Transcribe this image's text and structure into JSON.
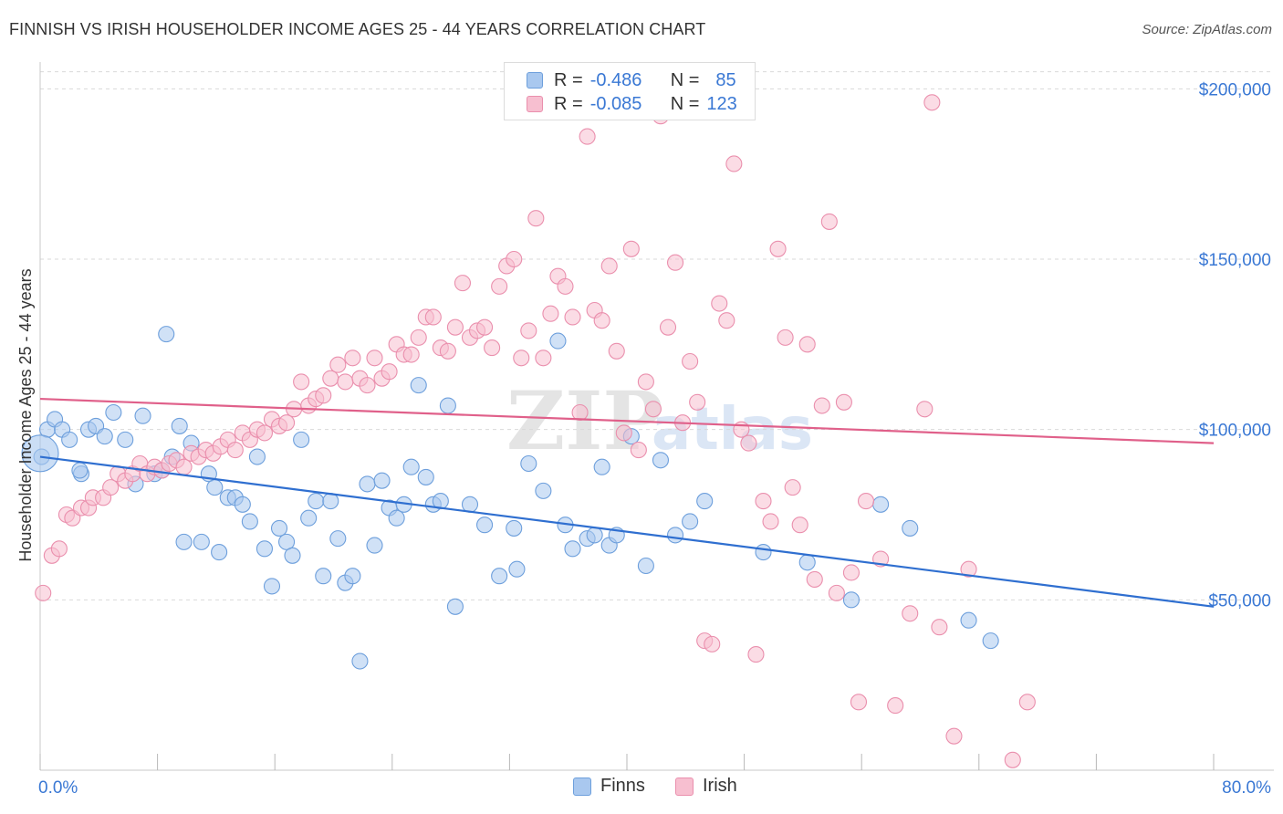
{
  "title": "FINNISH VS IRISH HOUSEHOLDER INCOME AGES 25 - 44 YEARS CORRELATION CHART",
  "source": "Source: ZipAtlas.com",
  "watermark": {
    "zip": "ZIP",
    "atlas": "atlas"
  },
  "legend_top": {
    "rows": [
      {
        "r_label": "R =",
        "r_value": "-0.486",
        "n_label": "N =",
        "n_value": "85"
      },
      {
        "r_label": "R =",
        "r_value": "-0.085",
        "n_label": "N =",
        "n_value": "123"
      }
    ]
  },
  "legend_bottom": {
    "finns": "Finns",
    "irish": "Irish"
  },
  "colors": {
    "finns_fill": "#a9c8ef",
    "finns_stroke": "#6d9fdc",
    "finns_line": "#2f6fd0",
    "irish_fill": "#f7bfd0",
    "irish_stroke": "#ea8fad",
    "irish_line": "#e0608a",
    "axis_text": "#3a78d4",
    "grid": "#d9d9d9"
  },
  "chart_data": {
    "type": "scatter",
    "title": "FINNISH VS IRISH HOUSEHOLDER INCOME AGES 25 - 44 YEARS CORRELATION CHART",
    "xlabel": "",
    "ylabel": "Householder Income Ages 25 - 44 years",
    "xlim": [
      0,
      80
    ],
    "ylim": [
      0,
      210000
    ],
    "x_tick_labels": [
      "0.0%",
      "80.0%"
    ],
    "y_ticks": [
      50000,
      100000,
      150000,
      200000
    ],
    "y_tick_labels": [
      "$50,000",
      "$100,000",
      "$150,000",
      "$200,000"
    ],
    "grid": true,
    "legend_position": "top-center",
    "series": [
      {
        "name": "Finns",
        "r": -0.486,
        "n": 85,
        "trend": {
          "x": [
            0,
            80
          ],
          "y": [
            92000,
            48000
          ]
        },
        "points": [
          [
            0.5,
            100000
          ],
          [
            1.0,
            103000
          ],
          [
            1.5,
            100000
          ],
          [
            2.0,
            97000
          ],
          [
            2.8,
            87000
          ],
          [
            3.3,
            100000
          ],
          [
            3.8,
            101000
          ],
          [
            4.4,
            98000
          ],
          [
            5.0,
            105000
          ],
          [
            5.8,
            97000
          ],
          [
            6.5,
            84000
          ],
          [
            7.0,
            104000
          ],
          [
            7.8,
            87000
          ],
          [
            8.3,
            88000
          ],
          [
            8.6,
            128000
          ],
          [
            9.0,
            92000
          ],
          [
            9.5,
            101000
          ],
          [
            9.8,
            67000
          ],
          [
            10.3,
            96000
          ],
          [
            11.0,
            67000
          ],
          [
            11.5,
            87000
          ],
          [
            11.9,
            83000
          ],
          [
            12.2,
            64000
          ],
          [
            12.8,
            80000
          ],
          [
            13.3,
            80000
          ],
          [
            13.8,
            78000
          ],
          [
            14.3,
            73000
          ],
          [
            14.8,
            92000
          ],
          [
            15.3,
            65000
          ],
          [
            15.8,
            54000
          ],
          [
            16.3,
            71000
          ],
          [
            16.8,
            67000
          ],
          [
            17.2,
            63000
          ],
          [
            17.8,
            97000
          ],
          [
            18.3,
            74000
          ],
          [
            18.8,
            79000
          ],
          [
            19.3,
            57000
          ],
          [
            19.8,
            79000
          ],
          [
            20.3,
            68000
          ],
          [
            20.8,
            55000
          ],
          [
            21.3,
            57000
          ],
          [
            21.8,
            32000
          ],
          [
            22.3,
            84000
          ],
          [
            22.8,
            66000
          ],
          [
            23.3,
            85000
          ],
          [
            23.8,
            77000
          ],
          [
            24.3,
            74000
          ],
          [
            24.8,
            78000
          ],
          [
            25.3,
            89000
          ],
          [
            25.8,
            113000
          ],
          [
            26.3,
            86000
          ],
          [
            26.8,
            78000
          ],
          [
            27.3,
            79000
          ],
          [
            27.8,
            107000
          ],
          [
            28.3,
            48000
          ],
          [
            29.3,
            78000
          ],
          [
            30.3,
            72000
          ],
          [
            31.3,
            57000
          ],
          [
            32.3,
            71000
          ],
          [
            32.5,
            59000
          ],
          [
            33.3,
            90000
          ],
          [
            34.3,
            82000
          ],
          [
            35.3,
            126000
          ],
          [
            35.8,
            72000
          ],
          [
            36.3,
            65000
          ],
          [
            37.3,
            68000
          ],
          [
            37.8,
            69000
          ],
          [
            38.3,
            89000
          ],
          [
            38.8,
            66000
          ],
          [
            39.3,
            69000
          ],
          [
            40.3,
            98000
          ],
          [
            41.3,
            60000
          ],
          [
            42.3,
            91000
          ],
          [
            43.3,
            69000
          ],
          [
            44.3,
            73000
          ],
          [
            45.3,
            79000
          ],
          [
            49.3,
            64000
          ],
          [
            52.3,
            61000
          ],
          [
            55.3,
            50000
          ],
          [
            57.3,
            78000
          ],
          [
            59.3,
            71000
          ],
          [
            63.3,
            44000
          ],
          [
            64.8,
            38000
          ],
          [
            0.1,
            92000
          ],
          [
            2.7,
            88000
          ]
        ]
      },
      {
        "name": "Irish",
        "r": -0.085,
        "n": 123,
        "trend": {
          "x": [
            0,
            80
          ],
          "y": [
            109000,
            96000
          ]
        },
        "points": [
          [
            0.2,
            52000
          ],
          [
            0.8,
            63000
          ],
          [
            1.3,
            65000
          ],
          [
            1.8,
            75000
          ],
          [
            2.2,
            74000
          ],
          [
            2.8,
            77000
          ],
          [
            3.3,
            77000
          ],
          [
            3.6,
            80000
          ],
          [
            4.3,
            80000
          ],
          [
            4.8,
            83000
          ],
          [
            5.3,
            87000
          ],
          [
            5.8,
            85000
          ],
          [
            6.3,
            87000
          ],
          [
            6.8,
            90000
          ],
          [
            7.3,
            87000
          ],
          [
            7.8,
            89000
          ],
          [
            8.3,
            88000
          ],
          [
            8.8,
            90000
          ],
          [
            9.3,
            91000
          ],
          [
            9.8,
            89000
          ],
          [
            10.3,
            93000
          ],
          [
            10.8,
            92000
          ],
          [
            11.3,
            94000
          ],
          [
            11.8,
            93000
          ],
          [
            12.3,
            95000
          ],
          [
            12.8,
            97000
          ],
          [
            13.3,
            94000
          ],
          [
            13.8,
            99000
          ],
          [
            14.3,
            97000
          ],
          [
            14.8,
            100000
          ],
          [
            15.3,
            99000
          ],
          [
            15.8,
            103000
          ],
          [
            16.3,
            101000
          ],
          [
            16.8,
            102000
          ],
          [
            17.3,
            106000
          ],
          [
            17.8,
            114000
          ],
          [
            18.3,
            107000
          ],
          [
            18.8,
            109000
          ],
          [
            19.3,
            110000
          ],
          [
            19.8,
            115000
          ],
          [
            20.3,
            119000
          ],
          [
            20.8,
            114000
          ],
          [
            21.3,
            121000
          ],
          [
            21.8,
            115000
          ],
          [
            22.3,
            113000
          ],
          [
            22.8,
            121000
          ],
          [
            23.3,
            115000
          ],
          [
            23.8,
            117000
          ],
          [
            24.3,
            125000
          ],
          [
            24.8,
            122000
          ],
          [
            25.3,
            122000
          ],
          [
            25.8,
            127000
          ],
          [
            26.3,
            133000
          ],
          [
            26.8,
            133000
          ],
          [
            27.3,
            124000
          ],
          [
            27.8,
            123000
          ],
          [
            28.3,
            130000
          ],
          [
            28.8,
            143000
          ],
          [
            29.3,
            127000
          ],
          [
            29.8,
            129000
          ],
          [
            30.3,
            130000
          ],
          [
            30.8,
            124000
          ],
          [
            31.3,
            142000
          ],
          [
            31.8,
            148000
          ],
          [
            32.3,
            150000
          ],
          [
            32.8,
            121000
          ],
          [
            33.3,
            129000
          ],
          [
            33.8,
            162000
          ],
          [
            34.3,
            121000
          ],
          [
            34.8,
            134000
          ],
          [
            35.3,
            145000
          ],
          [
            35.8,
            142000
          ],
          [
            36.3,
            133000
          ],
          [
            36.8,
            105000
          ],
          [
            37.3,
            186000
          ],
          [
            37.8,
            135000
          ],
          [
            38.3,
            132000
          ],
          [
            38.8,
            148000
          ],
          [
            39.3,
            123000
          ],
          [
            39.8,
            99000
          ],
          [
            40.3,
            153000
          ],
          [
            40.8,
            94000
          ],
          [
            41.3,
            114000
          ],
          [
            41.8,
            106000
          ],
          [
            42.3,
            192000
          ],
          [
            42.8,
            130000
          ],
          [
            43.3,
            149000
          ],
          [
            43.8,
            102000
          ],
          [
            44.3,
            120000
          ],
          [
            44.8,
            108000
          ],
          [
            45.3,
            38000
          ],
          [
            45.8,
            37000
          ],
          [
            46.3,
            137000
          ],
          [
            46.8,
            132000
          ],
          [
            47.3,
            178000
          ],
          [
            47.8,
            100000
          ],
          [
            48.3,
            96000
          ],
          [
            48.8,
            34000
          ],
          [
            49.3,
            79000
          ],
          [
            49.8,
            73000
          ],
          [
            50.3,
            153000
          ],
          [
            50.8,
            127000
          ],
          [
            51.3,
            83000
          ],
          [
            51.8,
            72000
          ],
          [
            52.3,
            125000
          ],
          [
            52.8,
            56000
          ],
          [
            53.3,
            107000
          ],
          [
            53.8,
            161000
          ],
          [
            54.3,
            52000
          ],
          [
            54.8,
            108000
          ],
          [
            55.3,
            58000
          ],
          [
            55.8,
            20000
          ],
          [
            56.3,
            79000
          ],
          [
            57.3,
            62000
          ],
          [
            58.3,
            19000
          ],
          [
            59.3,
            46000
          ],
          [
            60.3,
            106000
          ],
          [
            60.8,
            196000
          ],
          [
            61.3,
            42000
          ],
          [
            62.3,
            10000
          ],
          [
            63.3,
            59000
          ],
          [
            66.3,
            3000
          ],
          [
            67.3,
            20000
          ]
        ]
      }
    ]
  }
}
